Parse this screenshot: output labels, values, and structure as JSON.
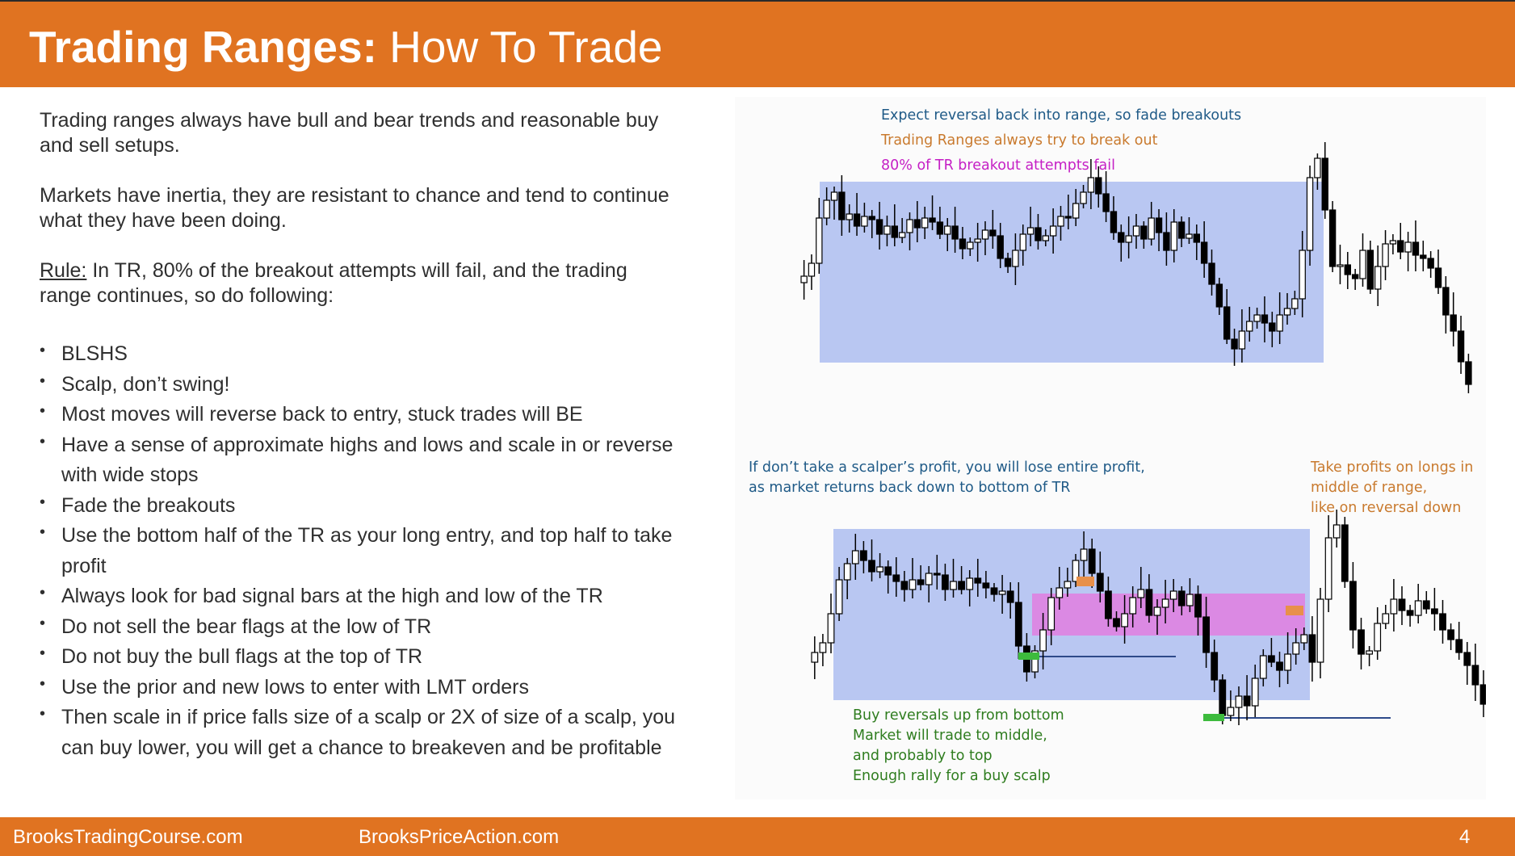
{
  "slide": {
    "title_bold": "Trading Ranges:",
    "title_rest": " How To Trade",
    "page_number": "4"
  },
  "body": {
    "para1": "Trading ranges always have bull and bear trends and reasonable buy and sell setups.",
    "para2": "Markets have inertia, they are resistant to chance and tend to continue what they have been doing.",
    "rule_label": "Rule:",
    "rule_text": " In TR, 80% of the breakout attempts will fail, and the trading range continues, so do following:",
    "bullets": [
      "BLSHS",
      "Scalp, don’t swing!",
      "Most moves will reverse back to entry, stuck trades will BE",
      "Have a sense of approximate highs and lows and scale in or reverse with wide stops",
      "Fade the breakouts",
      "Use the bottom half of the TR as your long entry, and top half to take profit",
      "Always look for bad signal bars at the high and low of the TR",
      "Do not sell the bear flags at the low of TR",
      "Do not buy the bull flags at the top of TR",
      "Use the prior and new lows to enter with LMT orders",
      "Then scale in if price falls size of a scalp or 2X of size of a scalp, you can buy lower, you will get a chance to breakeven and be profitable"
    ]
  },
  "chart_top": {
    "note1": "Expect reversal back into range, so fade breakouts",
    "note2": "Trading Ranges always try to break out",
    "note3": "80% of TR breakout attempts fail"
  },
  "chart_bottom": {
    "note_left_1": "If don’t take a scalper’s profit, you will lose entire profit,",
    "note_left_2": "as market returns back down to bottom of TR",
    "note_right_1": "Take profits on longs in",
    "note_right_2": "middle of range,",
    "note_right_3": "like on reversal down",
    "note_green_1": "Buy reversals up from bottom",
    "note_green_2": "Market will trade to middle,",
    "note_green_3": "and probably to top",
    "note_green_4": "Enough rally for a buy scalp"
  },
  "footer": {
    "site1": "BrooksTradingCourse.com",
    "site2": "BrooksPriceAction.com"
  },
  "colors": {
    "brand_orange": "#e07321",
    "range_box": "#b9c7f2",
    "middle_zone": "#e07ee0",
    "note_blue": "#1f5a87",
    "note_orange": "#c97a2e",
    "note_magenta": "#c51fc5",
    "note_green": "#2f7d1f",
    "entry_marker_green": "#3dbb3d",
    "exit_marker_orange": "#e8904a",
    "entry_line_blue": "#2e4a8a"
  }
}
